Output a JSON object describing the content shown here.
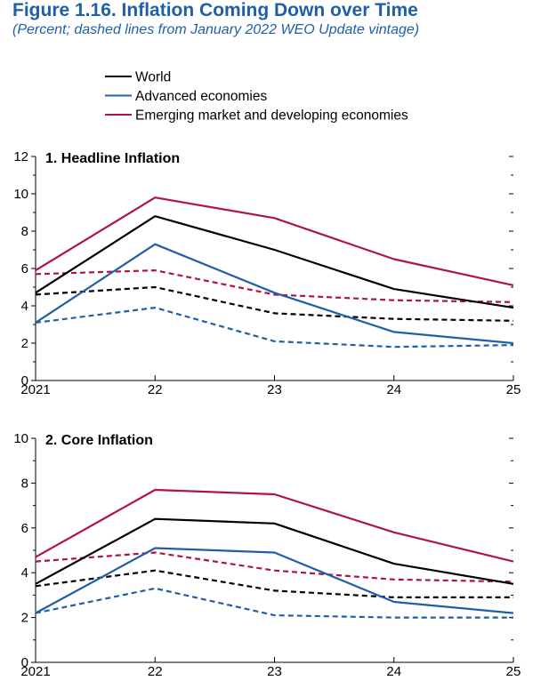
{
  "figure": {
    "title": "Figure 1.16. Inflation Coming Down over Time",
    "subtitle": "(Percent; dashed lines from January 2022 WEO Update vintage)"
  },
  "colors": {
    "world": "#000000",
    "advanced": "#1f5fa8",
    "emerging": "#b0163d",
    "axis": "#000000"
  },
  "legend": {
    "placement": "top-center",
    "entries": [
      {
        "key": "world",
        "label": "World"
      },
      {
        "key": "advanced",
        "label": "Advanced economies"
      },
      {
        "key": "emerging",
        "label": "Emerging market and developing economies"
      }
    ]
  },
  "chart_data": [
    {
      "type": "line",
      "title": "1. Headline Inflation",
      "x": [
        "2021",
        "22",
        "23",
        "24",
        "25"
      ],
      "ylim": [
        0,
        12
      ],
      "yticks": [
        0,
        2,
        4,
        6,
        8,
        10,
        12
      ],
      "ytick_labels": [
        "0",
        "2",
        "4",
        "6",
        "8",
        "10",
        "12"
      ],
      "series": [
        {
          "key": "world",
          "name": "World",
          "style": "solid",
          "values": [
            4.7,
            8.8,
            7.0,
            4.9,
            3.9
          ]
        },
        {
          "key": "advanced",
          "name": "Advanced economies",
          "style": "solid",
          "values": [
            3.1,
            7.3,
            4.7,
            2.6,
            2.0
          ]
        },
        {
          "key": "emerging",
          "name": "Emerging market and developing economies",
          "style": "solid",
          "values": [
            5.9,
            9.8,
            8.7,
            6.5,
            5.1
          ]
        },
        {
          "key": "world",
          "style": "dashed",
          "values": [
            4.6,
            5.0,
            3.6,
            3.3,
            3.2
          ]
        },
        {
          "key": "advanced",
          "style": "dashed",
          "values": [
            3.1,
            3.9,
            2.1,
            1.8,
            1.9
          ]
        },
        {
          "key": "emerging",
          "style": "dashed",
          "values": [
            5.7,
            5.9,
            4.6,
            4.3,
            4.2
          ]
        }
      ]
    },
    {
      "type": "line",
      "title": "2. Core Inflation",
      "x": [
        "2021",
        "22",
        "23",
        "24",
        "25"
      ],
      "ylim": [
        0,
        10
      ],
      "yticks": [
        0,
        2,
        4,
        6,
        8,
        10
      ],
      "ytick_labels": [
        "0",
        "2",
        "4",
        "6",
        "8",
        "10"
      ],
      "series": [
        {
          "key": "world",
          "name": "World",
          "style": "solid",
          "values": [
            3.5,
            6.4,
            6.2,
            4.4,
            3.5
          ]
        },
        {
          "key": "advanced",
          "name": "Advanced economies",
          "style": "solid",
          "values": [
            2.2,
            5.1,
            4.9,
            2.7,
            2.2
          ]
        },
        {
          "key": "emerging",
          "name": "Emerging market and developing economies",
          "style": "solid",
          "values": [
            4.7,
            7.7,
            7.5,
            5.8,
            4.5
          ]
        },
        {
          "key": "world",
          "style": "dashed",
          "values": [
            3.4,
            4.1,
            3.2,
            2.9,
            2.9
          ]
        },
        {
          "key": "advanced",
          "style": "dashed",
          "values": [
            2.2,
            3.3,
            2.1,
            2.0,
            2.0
          ]
        },
        {
          "key": "emerging",
          "style": "dashed",
          "values": [
            4.5,
            4.9,
            4.1,
            3.7,
            3.6
          ]
        }
      ]
    }
  ]
}
